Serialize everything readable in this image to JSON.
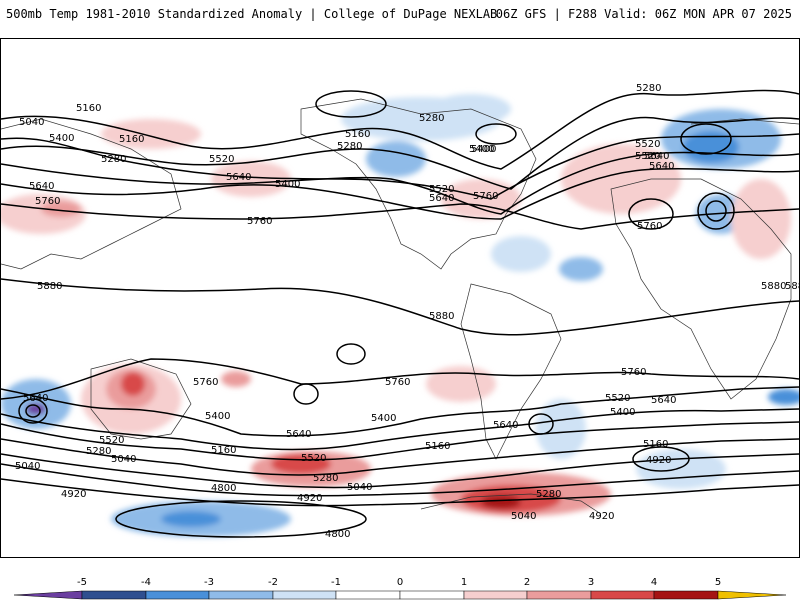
{
  "header": {
    "title": "500mb Temp 1981-2010 Standardized Anomaly | College of DuPage NEXLAB",
    "run_info": "06Z GFS | F288 Valid: 06Z MON APR 07 2025"
  },
  "colors": {
    "neg5": "#6b3fa0",
    "neg4": "#2f4f8f",
    "neg3": "#4a90d9",
    "neg2": "#8fbbe8",
    "neg1": "#cfe2f5",
    "zero": "#ffffff",
    "pos1": "#f6cfcf",
    "pos2": "#ea9c9c",
    "pos3": "#d84848",
    "pos4": "#a51414",
    "pos5": "#6e0808",
    "over": "#f0c000"
  },
  "colorbar": {
    "ticks": [
      "-5",
      "-4",
      "-3",
      "-2",
      "-1",
      "0",
      "1",
      "2",
      "3",
      "4",
      "5"
    ]
  },
  "contour_labels": [
    "5160",
    "5280",
    "5040",
    "5400",
    "5160",
    "5280",
    "5640",
    "5520",
    "5400",
    "5640",
    "5760",
    "5520",
    "5400",
    "5520",
    "5640",
    "5760",
    "5640",
    "5760",
    "5880",
    "5880",
    "5880",
    "5520",
    "5640",
    "5880",
    "5160",
    "5280",
    "5400",
    "5040",
    "4920",
    "5760",
    "5400",
    "5640",
    "5520",
    "5280",
    "5160",
    "5040",
    "4920",
    "4800",
    "4800",
    "5160",
    "5040",
    "5280",
    "4920",
    "5760",
    "5520",
    "5640",
    "5400",
    "5160",
    "4920",
    "5640",
    "5760",
    "5040",
    "5760",
    "5280",
    "5280",
    "5400",
    "5520",
    "5640"
  ]
}
